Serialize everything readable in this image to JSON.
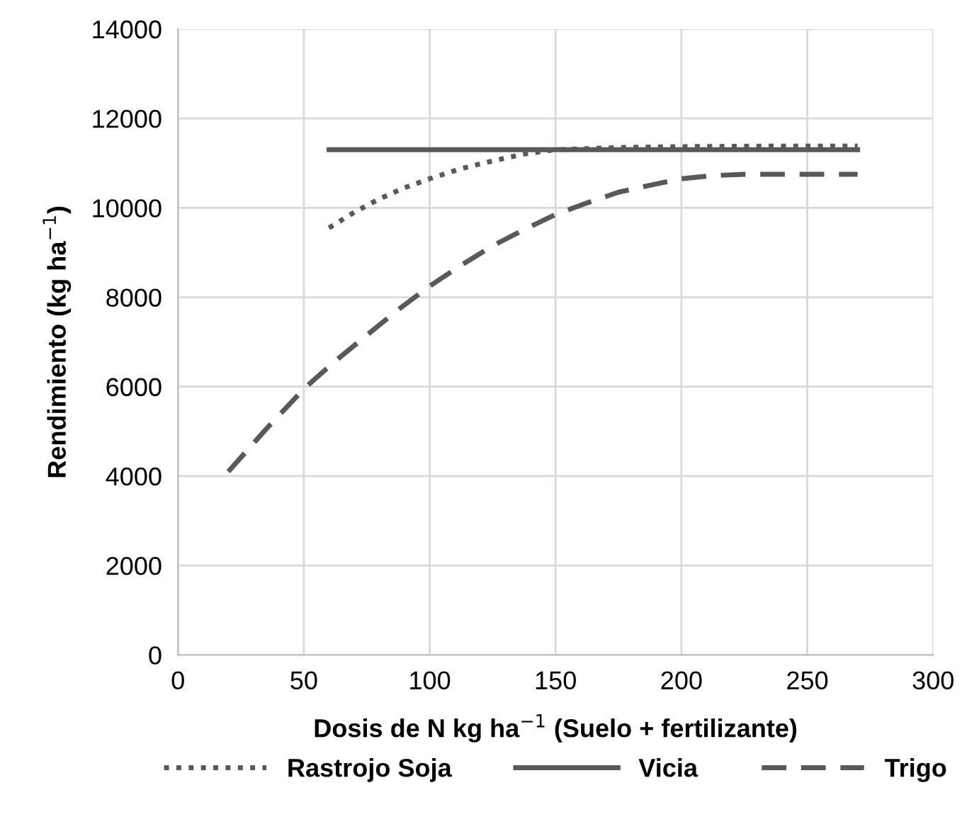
{
  "chart_data": {
    "type": "line",
    "xlabel": "Dosis de N kg ha$^{−1}$ (Suelo + fertilizante)",
    "ylabel": "Rendimiento (kg ha$^{−1}$)",
    "xlim": [
      0,
      300
    ],
    "xticks": [
      0,
      50,
      100,
      150,
      200,
      250,
      300
    ],
    "ylim": [
      0,
      14000
    ],
    "yticks": [
      0,
      2000,
      4000,
      6000,
      8000,
      10000,
      12000,
      14000
    ],
    "grid": true,
    "legend": "bottom",
    "marker": "none",
    "series": [
      {
        "name": "Rastrojo Soja",
        "color": "#595959",
        "line_style": "dotted",
        "x": [
          60,
          70,
          80,
          90,
          100,
          112,
          125,
          137,
          150,
          175,
          200,
          235,
          270
        ],
        "values": [
          9550,
          9900,
          10200,
          10450,
          10650,
          10870,
          11050,
          11200,
          11300,
          11350,
          11370,
          11380,
          11380
        ]
      },
      {
        "name": "Vicia",
        "color": "#595959",
        "line_style": "solid",
        "x": [
          60,
          270
        ],
        "values": [
          11300,
          11300
        ]
      },
      {
        "name": "Trigo",
        "color": "#595959",
        "line_style": "dashed",
        "x": [
          20,
          35,
          50,
          62,
          75,
          87,
          100,
          112,
          125,
          137,
          150,
          162,
          175,
          187,
          200,
          212,
          225,
          250,
          270
        ],
        "values": [
          4100,
          5050,
          5950,
          6550,
          7150,
          7700,
          8250,
          8700,
          9150,
          9500,
          9850,
          10100,
          10350,
          10500,
          10650,
          10720,
          10750,
          10750,
          10750
        ]
      }
    ]
  }
}
